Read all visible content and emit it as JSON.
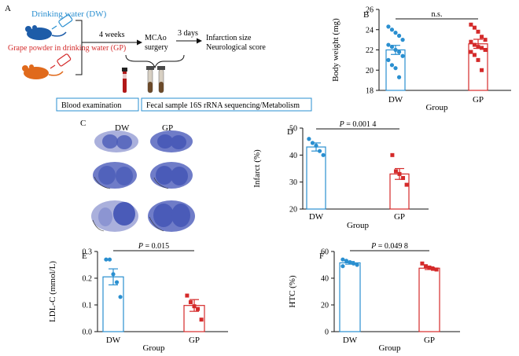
{
  "panel_a": {
    "letter": "A",
    "dw_label": "Drinking water (DW)",
    "gp_label": "Grape powder in drinking water (GP)",
    "time1": "4 weeks",
    "mcao_line1": "MCAo",
    "mcao_line2": "surgery",
    "time2": "3 days",
    "outcome1": "Infarction size",
    "outcome2": "Neurological score",
    "box1": "Blood examination",
    "box2": "Fecal sample 16S rRNA sequencing/Metabolism"
  },
  "panel_c": {
    "letter": "C",
    "col1": "DW",
    "col2": "GP"
  },
  "colors": {
    "dw": "#2a8fd0",
    "gp": "#d42a2a",
    "mouse_dw": "#1d5ca8",
    "mouse_gp": "#e06a1c",
    "stain": "#4a5bb8",
    "box_border": "#2a8fd0"
  },
  "chart_data": [
    {
      "id": "B",
      "type": "bar",
      "letter": "B",
      "ylabel": "Body weight (mg)",
      "xlabel": "Group",
      "categories": [
        "DW",
        "GP"
      ],
      "ylim": [
        18,
        26
      ],
      "yticks": [
        "18",
        "20",
        "22",
        "24",
        "26"
      ],
      "ytick_values": [
        18,
        20,
        22,
        24,
        26
      ],
      "means": [
        22.0,
        22.6
      ],
      "errors": [
        0.45,
        0.45
      ],
      "points": [
        [
          24.3,
          24.0,
          23.7,
          23.4,
          23.0,
          22.5,
          22.3,
          22.0,
          21.8,
          21.4,
          21.0,
          20.5,
          20.2,
          19.3
        ],
        [
          24.5,
          24.2,
          23.8,
          23.3,
          23.0,
          22.8,
          22.5,
          22.3,
          22.2,
          22.0,
          21.8,
          21.5,
          21.0,
          20.0
        ]
      ],
      "annotation": "n.s."
    },
    {
      "id": "D",
      "type": "bar",
      "letter": "D",
      "ylabel": "Infarct (%)",
      "xlabel": "Group",
      "categories": [
        "DW",
        "GP"
      ],
      "ylim": [
        20,
        50
      ],
      "yticks": [
        "20",
        "30",
        "40",
        "50"
      ],
      "ytick_values": [
        20,
        30,
        40,
        50
      ],
      "means": [
        43.0,
        33.0
      ],
      "errors": [
        1.5,
        2.0
      ],
      "points": [
        [
          46.0,
          44.5,
          43.5,
          41.5,
          40.0
        ],
        [
          40.0,
          34.0,
          33.0,
          31.5,
          29.0
        ]
      ],
      "annotation": "P = 0.001 4"
    },
    {
      "id": "E",
      "type": "bar",
      "letter": "E",
      "ylabel": "LDL-C (mmol/L)",
      "xlabel": "Group",
      "categories": [
        "DW",
        "GP"
      ],
      "ylim": [
        0,
        0.3
      ],
      "yticks": [
        "0.0",
        "0.1",
        "0.2",
        "0.3"
      ],
      "ytick_values": [
        0,
        0.1,
        0.2,
        0.3
      ],
      "means": [
        0.205,
        0.098
      ],
      "errors": [
        0.03,
        0.022
      ],
      "points": [
        [
          0.27,
          0.27,
          0.215,
          0.185,
          0.13
        ],
        [
          0.135,
          0.11,
          0.095,
          0.085,
          0.045
        ]
      ],
      "annotation": "P = 0.015"
    },
    {
      "id": "F",
      "type": "bar",
      "letter": "F",
      "ylabel": "HTC (%)",
      "xlabel": "Group",
      "categories": [
        "DW",
        "GP"
      ],
      "ylim": [
        0,
        60
      ],
      "yticks": [
        "0",
        "20",
        "40",
        "60"
      ],
      "ytick_values": [
        0,
        20,
        40,
        60
      ],
      "means": [
        51.5,
        47.5
      ],
      "errors": [
        1.0,
        1.0
      ],
      "points": [
        [
          54.0,
          53.0,
          52.0,
          51.0,
          50.0,
          49.0
        ],
        [
          51.0,
          49.0,
          48.0,
          47.0,
          46.5
        ]
      ],
      "annotation": "P = 0.049 8"
    }
  ]
}
